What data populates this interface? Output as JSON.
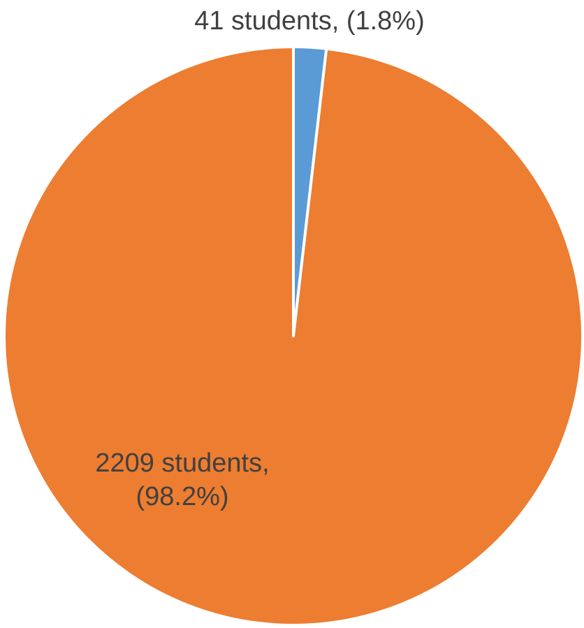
{
  "chart_data": {
    "type": "pie",
    "title": "",
    "slices": [
      {
        "value": 41,
        "percent": 1.8,
        "label_lines": [
          "41 students, (1.8%)"
        ],
        "color": "#5b9bd5"
      },
      {
        "value": 2209,
        "percent": 98.2,
        "label_lines": [
          "2209 students,",
          "(98.2%)"
        ],
        "color": "#ed7d31"
      }
    ],
    "start_angle": "12 o'clock",
    "direction": "clockwise",
    "slice_border_color": "#ffffff",
    "legend": "none"
  }
}
